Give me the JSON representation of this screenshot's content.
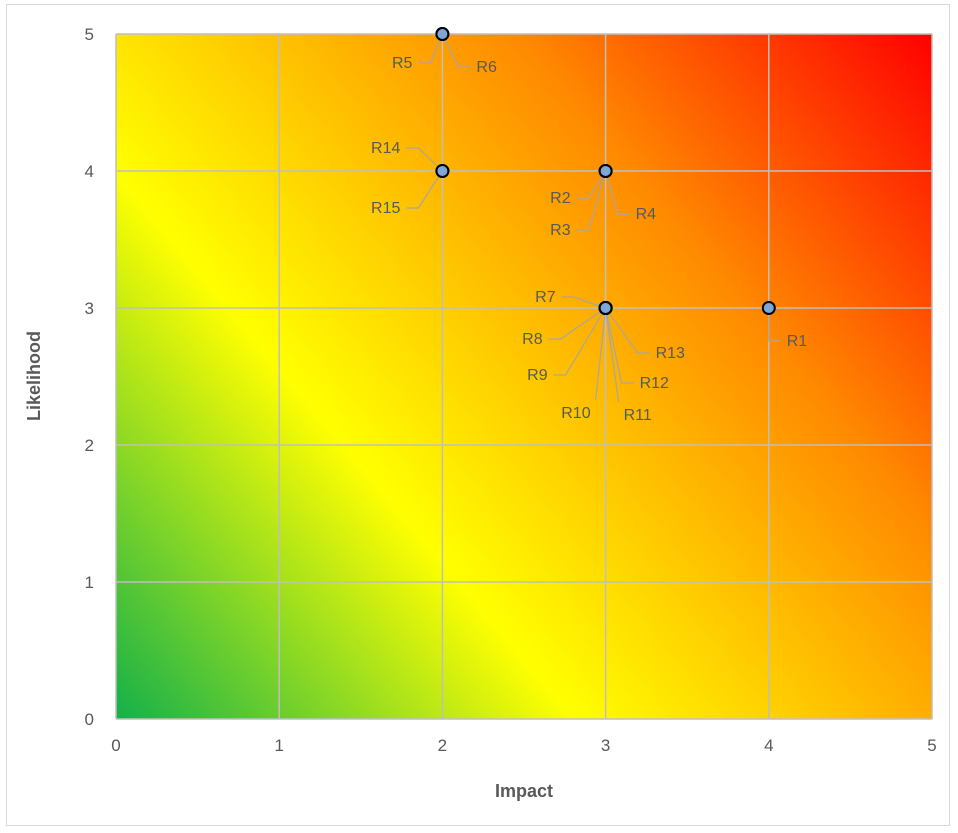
{
  "chart_data": {
    "type": "scatter",
    "title": "",
    "xlabel": "Impact",
    "ylabel": "Likelihood",
    "xlim": [
      0,
      5
    ],
    "ylim": [
      0,
      5
    ],
    "xticks": [
      "0",
      "1",
      "2",
      "3",
      "4",
      "5"
    ],
    "yticks": [
      "0",
      "1",
      "2",
      "3",
      "4",
      "5"
    ],
    "grid": true,
    "legend": "none",
    "background": "diagonal gradient from green (low impact, low likelihood) through yellow and orange to red (high impact, high likelihood)",
    "colors": {
      "green": "#14b04a",
      "yellow": "#ffff00",
      "orange": "#ff8a00",
      "red": "#ff0000",
      "marker_fill": "#7ea7d8",
      "marker_stroke": "#000000",
      "gridline": "#bfbfbf",
      "text": "#595959"
    },
    "points": [
      {
        "label": "R1",
        "x": 4,
        "y": 3
      },
      {
        "label": "R2",
        "x": 3,
        "y": 4
      },
      {
        "label": "R3",
        "x": 3,
        "y": 4
      },
      {
        "label": "R4",
        "x": 3,
        "y": 4
      },
      {
        "label": "R5",
        "x": 2,
        "y": 5
      },
      {
        "label": "R6",
        "x": 2,
        "y": 5
      },
      {
        "label": "R7",
        "x": 3,
        "y": 3
      },
      {
        "label": "R8",
        "x": 3,
        "y": 3
      },
      {
        "label": "R9",
        "x": 3,
        "y": 3
      },
      {
        "label": "R10",
        "x": 3,
        "y": 3
      },
      {
        "label": "R11",
        "x": 3,
        "y": 3
      },
      {
        "label": "R12",
        "x": 3,
        "y": 3
      },
      {
        "label": "R13",
        "x": 3,
        "y": 3
      },
      {
        "label": "R14",
        "x": 2,
        "y": 4
      },
      {
        "label": "R15",
        "x": 2,
        "y": 4
      }
    ]
  }
}
